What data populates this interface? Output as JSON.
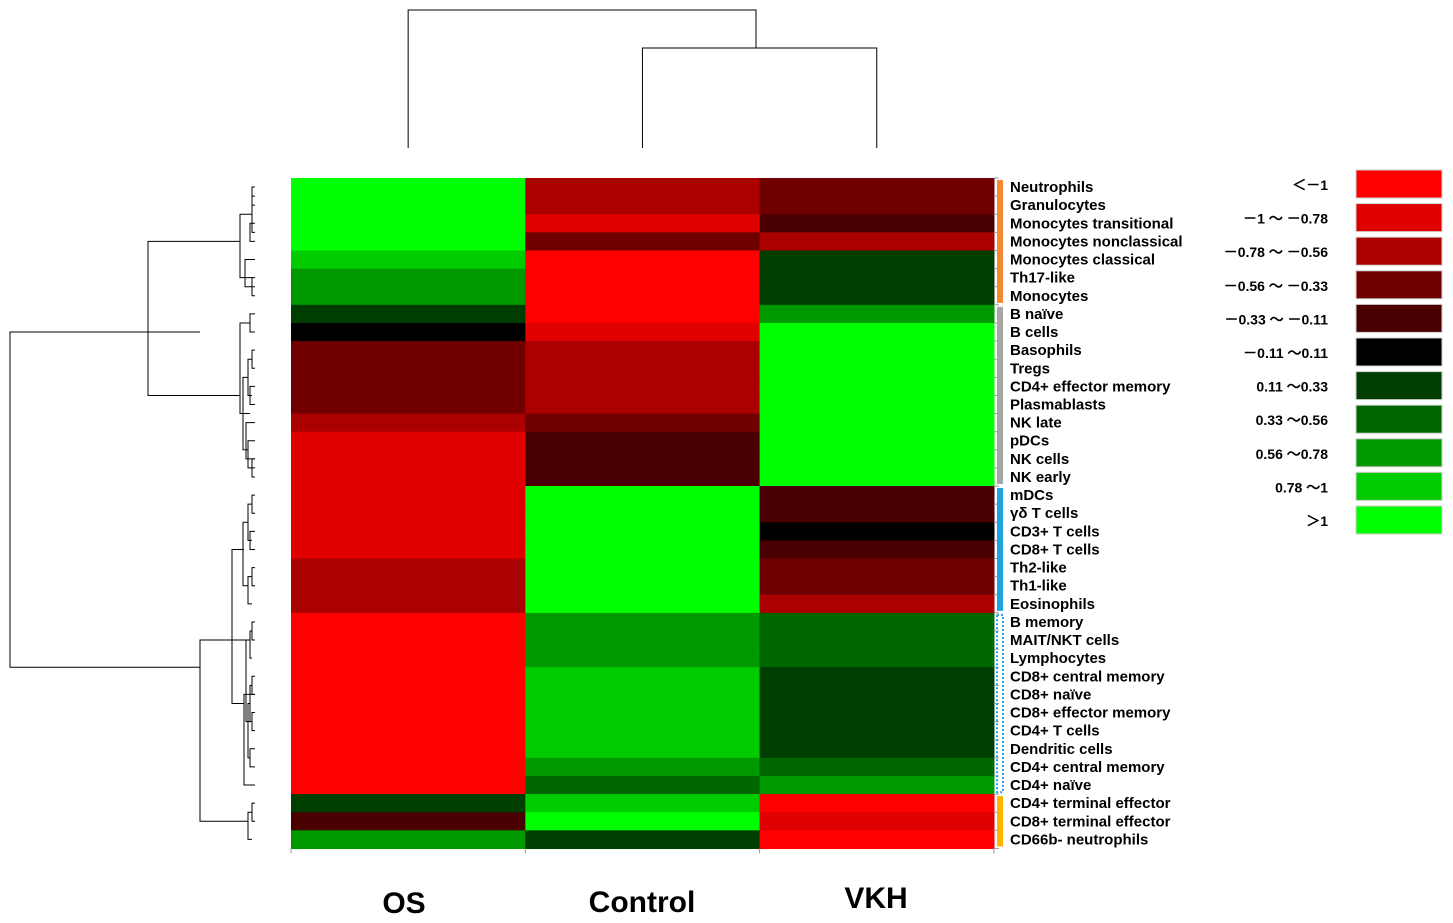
{
  "chart_data": {
    "type": "heatmap",
    "columns": [
      "OS",
      "Control",
      "VKH"
    ],
    "rows": [
      "Neutrophils",
      "Granulocytes",
      "Monocytes transitional",
      "Monocytes nonclassical",
      "Monocytes classical",
      "Th17-like",
      "Monocytes",
      "B naïve",
      "B cells",
      "Basophils",
      "Tregs",
      "CD4+ effector memory",
      "Plasmablasts",
      "NK late",
      "pDCs",
      "NK cells",
      "NK early",
      "mDCs",
      "γδ T cells",
      "CD3+ T cells",
      "CD8+ T cells",
      "Th2-like",
      "Th1-like",
      "Eosinophils",
      "B memory",
      "MAIT/NKT cells",
      "Lymphocytes",
      "CD8+ central memory",
      "CD8+ naïve",
      "CD8+ effector memory",
      "CD4+ T cells",
      "Dendritic cells",
      "CD4+ central memory",
      "CD4+ naïve",
      "CD4+ terminal effector",
      "CD8+ terminal effector",
      "CD66b- neutrophils"
    ],
    "values": [
      [
        1.2,
        -0.7,
        -0.45
      ],
      [
        1.2,
        -0.7,
        -0.45
      ],
      [
        1.2,
        -0.9,
        -0.3
      ],
      [
        1.2,
        -0.45,
        -0.7
      ],
      [
        0.9,
        -1.2,
        0.2
      ],
      [
        0.6,
        -1.2,
        0.3
      ],
      [
        0.7,
        -1.2,
        0.2
      ],
      [
        0.2,
        -1.2,
        0.7
      ],
      [
        0.0,
        -0.9,
        1.2
      ],
      [
        -0.45,
        -0.7,
        1.2
      ],
      [
        -0.45,
        -0.7,
        1.2
      ],
      [
        -0.45,
        -0.7,
        1.2
      ],
      [
        -0.45,
        -0.7,
        1.2
      ],
      [
        -0.7,
        -0.45,
        1.2
      ],
      [
        -0.9,
        -0.25,
        1.2
      ],
      [
        -0.9,
        -0.25,
        1.2
      ],
      [
        -0.9,
        -0.25,
        1.2
      ],
      [
        -0.9,
        1.2,
        -0.25
      ],
      [
        -0.9,
        1.2,
        -0.25
      ],
      [
        -0.9,
        1.2,
        0.0
      ],
      [
        -0.9,
        1.2,
        -0.3
      ],
      [
        -0.7,
        1.2,
        -0.45
      ],
      [
        -0.7,
        1.2,
        -0.45
      ],
      [
        -0.7,
        1.2,
        -0.7
      ],
      [
        -1.2,
        0.6,
        0.4
      ],
      [
        -1.2,
        0.6,
        0.4
      ],
      [
        -1.2,
        0.6,
        0.4
      ],
      [
        -1.2,
        0.9,
        0.2
      ],
      [
        -1.2,
        0.9,
        0.2
      ],
      [
        -1.2,
        0.9,
        0.2
      ],
      [
        -1.2,
        0.9,
        0.2
      ],
      [
        -1.2,
        0.9,
        0.2
      ],
      [
        -1.2,
        0.6,
        0.4
      ],
      [
        -1.2,
        0.4,
        0.6
      ],
      [
        0.2,
        0.9,
        -1.2
      ],
      [
        -0.3,
        1.2,
        -0.9
      ],
      [
        0.7,
        0.2,
        -1.2
      ]
    ],
    "legend": {
      "placement": "right",
      "entries": [
        {
          "label": "＜－1",
          "color": "#ff0000"
        },
        {
          "label": "－1 ～ －0.78",
          "color": "#e00000"
        },
        {
          "label": "－0.78 ～ －0.56",
          "color": "#ab0000"
        },
        {
          "label": "－0.56 ～ －0.33",
          "color": "#700000"
        },
        {
          "label": "－0.33 ～ －0.11",
          "color": "#4a0000"
        },
        {
          "label": "－0.11 ～0.11",
          "color": "#000000"
        },
        {
          "label": "0.11 ～0.33",
          "color": "#003d00"
        },
        {
          "label": "0.33 ～0.56",
          "color": "#006600"
        },
        {
          "label": "0.56 ～0.78",
          "color": "#009900"
        },
        {
          "label": "0.78 ～1",
          "color": "#00cc00"
        },
        {
          "label": "＞1",
          "color": "#00ff00"
        }
      ]
    },
    "row_groups": [
      {
        "from": 0,
        "to": 6,
        "color": "#f58a33",
        "style": "solid"
      },
      {
        "from": 7,
        "to": 16,
        "color": "#a6a6a6",
        "style": "solid"
      },
      {
        "from": 17,
        "to": 23,
        "color": "#1fa3e0",
        "style": "solid"
      },
      {
        "from": 24,
        "to": 33,
        "color": "#1fa3e0",
        "style": "dotted"
      },
      {
        "from": 34,
        "to": 36,
        "color": "#ffb400",
        "style": "solid"
      }
    ],
    "column_dendrogram": "(OS,(Control,VKH))",
    "row_dendrogram": "(((0-6),(7-16)),((17-23),(24-33)),(34-36))",
    "grid": false
  }
}
